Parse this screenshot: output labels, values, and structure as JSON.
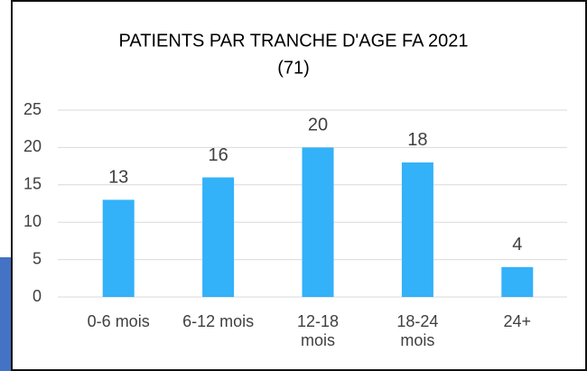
{
  "chart_data": {
    "type": "bar",
    "title": "PATIENTS PAR TRANCHE D'AGE FA 2021",
    "subtitle": "(71)",
    "categories": [
      "0-6 mois",
      "6-12 mois",
      "12-18 mois",
      "18-24 mois",
      "24+"
    ],
    "values": [
      13,
      16,
      20,
      18,
      4
    ],
    "color": "#33b1f9",
    "ylim": [
      0,
      25
    ],
    "yticks": [
      0,
      5,
      10,
      15,
      20,
      25
    ],
    "grid": true
  }
}
